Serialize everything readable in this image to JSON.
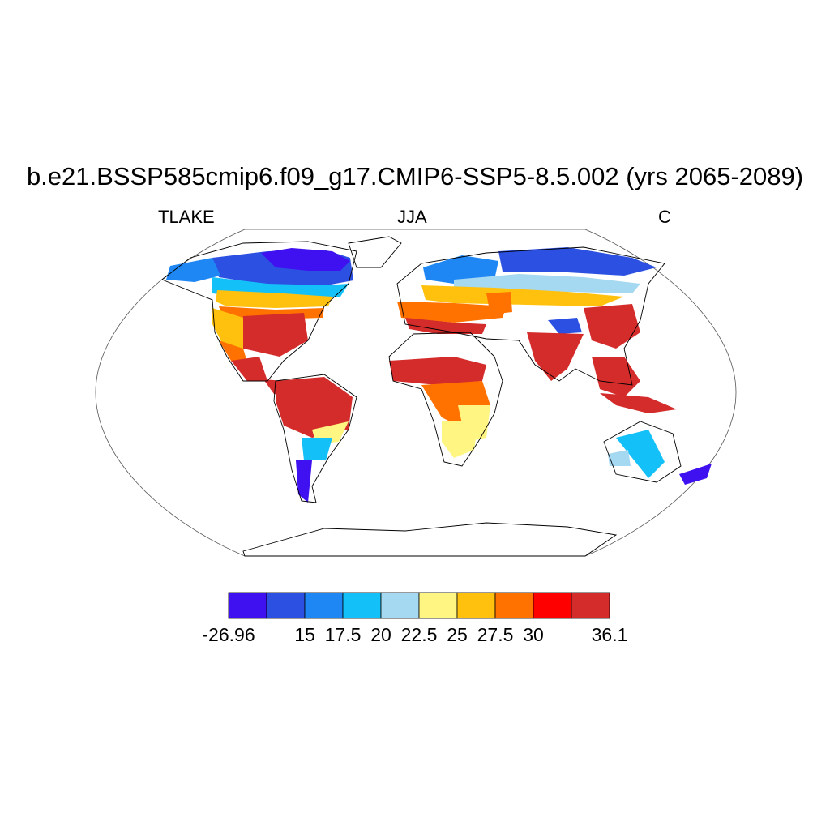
{
  "title": "b.e21.BSSP585cmip6.f09_g17.CMIP6-SSP5-8.5.002 (yrs 2065-2089)",
  "subtitle_left": "TLAKE",
  "subtitle_center": "JJA",
  "subtitle_right": "C",
  "colorbar": {
    "colors": [
      "#3f10f0",
      "#2c51e2",
      "#1f87f4",
      "#13c1f8",
      "#a5d8f1",
      "#fff582",
      "#ffc10e",
      "#ff7200",
      "#ff0000",
      "#d42b2b"
    ],
    "labels": [
      "-26.96",
      "15",
      "17.5",
      "20",
      "22.5",
      "25",
      "27.5",
      "30",
      "36.1"
    ],
    "label_boundaries": [
      0,
      2,
      3,
      4,
      5,
      6,
      7,
      8,
      10
    ]
  }
}
